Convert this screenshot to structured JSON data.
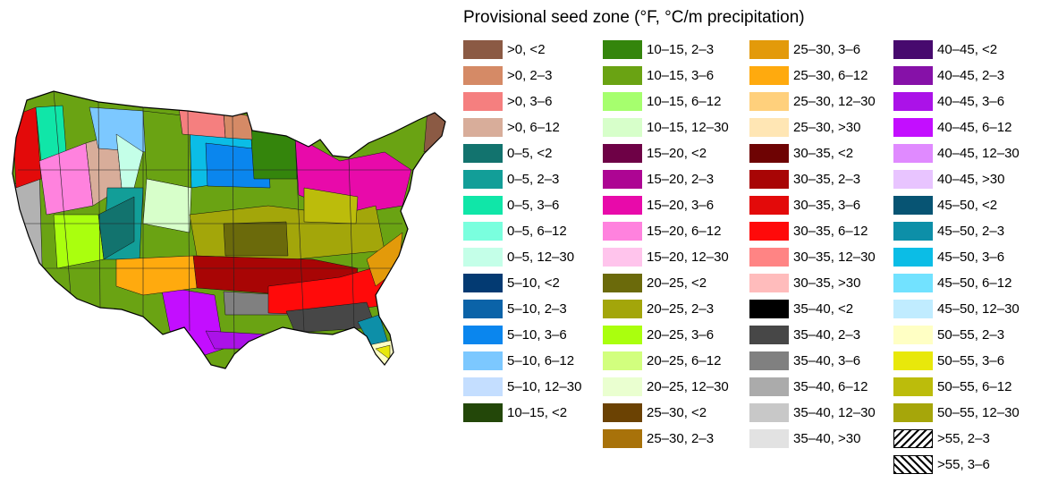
{
  "legend": {
    "title": "Provisional seed zone (°F, °C/m precipitation)",
    "columns": [
      [
        {
          "label": ">0, <2",
          "color": "#8b5a44"
        },
        {
          "label": ">0, 2–3",
          "color": "#d58a66"
        },
        {
          "label": ">0, 3–6",
          "color": "#f57f7f"
        },
        {
          "label": ">0, 6–12",
          "color": "#d8ad9a"
        },
        {
          "label": "0–5, <2",
          "color": "#12736e"
        },
        {
          "label": "0–5, 2–3",
          "color": "#129e98"
        },
        {
          "label": "0–5, 3–6",
          "color": "#10e6a8"
        },
        {
          "label": "0–5, 6–12",
          "color": "#7affde"
        },
        {
          "label": "0–5, 12–30",
          "color": "#c4ffe8"
        },
        {
          "label": "5–10, <2",
          "color": "#033a72"
        },
        {
          "label": "5–10, 2–3",
          "color": "#0b63a8"
        },
        {
          "label": "5–10, 3–6",
          "color": "#0a86ee"
        },
        {
          "label": "5–10, 6–12",
          "color": "#7cc8ff"
        },
        {
          "label": "5–10, 12–30",
          "color": "#c4deff"
        },
        {
          "label": "10–15, <2",
          "color": "#234709"
        }
      ],
      [
        {
          "label": "10–15, 2–3",
          "color": "#34850c"
        },
        {
          "label": "10–15, 3–6",
          "color": "#6aa313"
        },
        {
          "label": "10–15, 6–12",
          "color": "#a6ff6e"
        },
        {
          "label": "10–15, 12–30",
          "color": "#d7ffca"
        },
        {
          "label": "15–20, <2",
          "color": "#6e0146"
        },
        {
          "label": "15–20, 2–3",
          "color": "#ad0593"
        },
        {
          "label": "15–20, 3–6",
          "color": "#e80aaa"
        },
        {
          "label": "15–20, 6–12",
          "color": "#ff82de"
        },
        {
          "label": "15–20, 12–30",
          "color": "#ffc4ec"
        },
        {
          "label": "20–25, <2",
          "color": "#6b6a0b"
        },
        {
          "label": "20–25, 2–3",
          "color": "#a3a60a"
        },
        {
          "label": "20–25, 3–6",
          "color": "#aaff0e"
        },
        {
          "label": "20–25, 6–12",
          "color": "#d2ff7e"
        },
        {
          "label": "20–25, 12–30",
          "color": "#eaffd0"
        },
        {
          "label": "25–30, <2",
          "color": "#6b4203"
        },
        {
          "label": "25–30, 2–3",
          "color": "#a8720a"
        }
      ],
      [
        {
          "label": "25–30, 3–6",
          "color": "#e39a0a"
        },
        {
          "label": "25–30, 6–12",
          "color": "#ffaa0e"
        },
        {
          "label": "25–30, 12–30",
          "color": "#ffd07c"
        },
        {
          "label": "25–30, >30",
          "color": "#ffe6b4"
        },
        {
          "label": "30–35, <2",
          "color": "#6e0303"
        },
        {
          "label": "30–35, 2–3",
          "color": "#a80505"
        },
        {
          "label": "30–35, 3–6",
          "color": "#e30a0a"
        },
        {
          "label": "30–35, 6–12",
          "color": "#ff0a0a"
        },
        {
          "label": "30–35, 12–30",
          "color": "#ff8484"
        },
        {
          "label": "30–35, >30",
          "color": "#ffbcbc"
        },
        {
          "label": "35–40, <2",
          "color": "#000000"
        },
        {
          "label": "35–40, 2–3",
          "color": "#474747"
        },
        {
          "label": "35–40, 3–6",
          "color": "#808080"
        },
        {
          "label": "35–40, 6–12",
          "color": "#ababab"
        },
        {
          "label": "35–40, 12–30",
          "color": "#c8c8c8"
        },
        {
          "label": "35–40, >30",
          "color": "#e2e2e2"
        }
      ],
      [
        {
          "label": "40–45, <2",
          "color": "#470a6e"
        },
        {
          "label": "40–45, 2–3",
          "color": "#8611a8"
        },
        {
          "label": "40–45, 3–6",
          "color": "#ab12e8"
        },
        {
          "label": "40–45, 6–12",
          "color": "#c30eff"
        },
        {
          "label": "40–45, 12–30",
          "color": "#e08aff"
        },
        {
          "label": "40–45, >30",
          "color": "#e8c4ff"
        },
        {
          "label": "45–50, <2",
          "color": "#075473"
        },
        {
          "label": "45–50, 2–3",
          "color": "#0d8fa8"
        },
        {
          "label": "45–50, 3–6",
          "color": "#0bbde6"
        },
        {
          "label": "45–50, 6–12",
          "color": "#72e2ff"
        },
        {
          "label": "45–50, 12–30",
          "color": "#c0ecff"
        },
        {
          "label": "50–55, 2–3",
          "color": "#ffffc4"
        },
        {
          "label": "50–55, 3–6",
          "color": "#e8e80b"
        },
        {
          "label": "50–55, 6–12",
          "color": "#bcbc0b"
        },
        {
          "label": "50–55, 12–30",
          "color": "#a6a60a"
        },
        {
          "label": ">55, 2–3",
          "color": "#ffffff",
          "pattern": "hatch-a"
        },
        {
          "label": ">55, 3–6",
          "color": "#ffffff",
          "pattern": "hatch-b"
        }
      ]
    ]
  },
  "map": {
    "regions": [
      {
        "color": "#b2b2b2"
      },
      {
        "color": "#e30a0a"
      },
      {
        "color": "#10e6a8"
      },
      {
        "color": "#ff82de"
      },
      {
        "color": "#d8ad9a"
      },
      {
        "color": "#7cc8ff"
      },
      {
        "color": "#c4ffe8"
      },
      {
        "color": "#6aa313"
      },
      {
        "color": "#d7ffca"
      },
      {
        "color": "#0bbde6"
      },
      {
        "color": "#0a86ee"
      },
      {
        "color": "#34850c"
      },
      {
        "color": "#129e98"
      },
      {
        "color": "#f57f7f"
      },
      {
        "color": "#d58a66"
      },
      {
        "color": "#8b5a44"
      },
      {
        "color": "#e80aaa"
      },
      {
        "color": "#aaff0e"
      },
      {
        "color": "#a3a60a"
      },
      {
        "color": "#c30eff"
      },
      {
        "color": "#6b6a0b"
      },
      {
        "color": "#a80505"
      },
      {
        "color": "#808080"
      },
      {
        "color": "#ff0a0a"
      },
      {
        "color": "#ffaa0e"
      },
      {
        "color": "#12736e"
      },
      {
        "color": "#e39a0a"
      },
      {
        "color": "#474747"
      },
      {
        "color": "#ab12e8"
      },
      {
        "color": "#0d8fa8"
      },
      {
        "color": "#ffffc4"
      },
      {
        "color": "#e8e80b"
      },
      {
        "color": "#bcbc0b"
      }
    ]
  }
}
